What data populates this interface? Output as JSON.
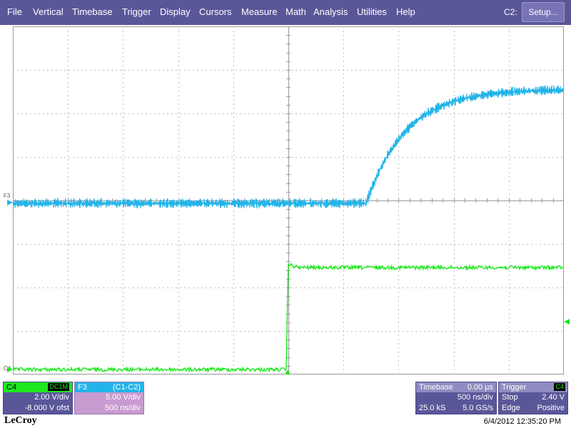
{
  "menu": {
    "items": [
      "File",
      "Vertical",
      "Timebase",
      "Trigger",
      "Display",
      "Cursors",
      "Measure",
      "Math",
      "Analysis",
      "Utilities",
      "Help"
    ],
    "channel_label": "C2:",
    "setup_label": "Setup..."
  },
  "markers": {
    "f3": "F3",
    "c4": "C4"
  },
  "colors": {
    "c4": "#1ee81e",
    "f3": "#22b4e8",
    "menu": "#5a5799"
  },
  "panels": {
    "c4": {
      "name": "C4",
      "coupling": "DC1M",
      "scale": "2.00 V/div",
      "offset": "-8.000 V ofst"
    },
    "f3": {
      "name": "F3",
      "function": "(C1-C2)",
      "scale": "5.00 V/div",
      "timebase": "500 ns/div"
    },
    "timebase": {
      "title": "Timebase",
      "delay": "0.00 µs",
      "per_div": "500 ns/div",
      "samples": "25.0 kS",
      "rate": "5.0 GS/s"
    },
    "trigger": {
      "title": "Trigger",
      "source": "C4",
      "mode": "Stop",
      "level": "2.40 V",
      "type": "Edge",
      "slope": "Positive"
    }
  },
  "brand": "LeCroy",
  "timestamp": "6/4/2012 12:35:20 PM"
}
